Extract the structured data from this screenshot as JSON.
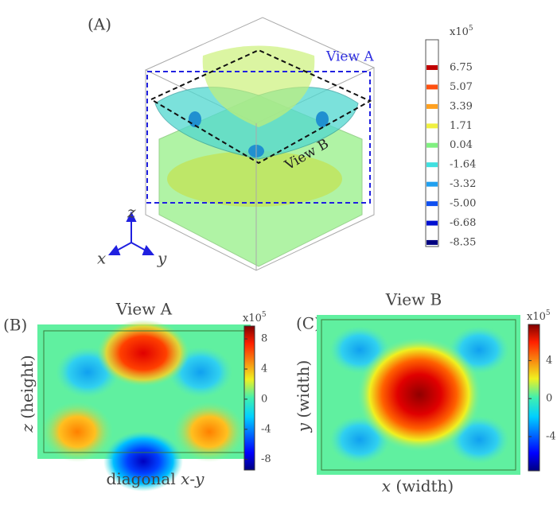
{
  "chart_data": [
    {
      "type": "isosurface",
      "panel_label": "(A)",
      "view_labels": [
        "View A",
        "View B"
      ],
      "axis_labels": {
        "x": "x",
        "y": "y",
        "z": "z"
      },
      "multiplier": {
        "base": "x10",
        "exponent": "5"
      },
      "clim": [
        -8.7,
        9.15
      ],
      "levels": [
        6.75,
        5.07,
        3.39,
        1.71,
        0.04,
        -1.64,
        -3.32,
        {
          "value": -5,
          "label": "-5.00"
        },
        -6.68,
        -8.35
      ],
      "level_colors": [
        "#c00000",
        "#ff5010",
        "#ffa020",
        "#f0f040",
        "#80f080",
        "#40e0e0",
        "#20a0f0",
        "#1050f0",
        "#0010d0",
        "#000080"
      ]
    },
    {
      "type": "heatmap",
      "panel_label": "(B)",
      "title": "View A",
      "xlabel": {
        "parts": [
          "diagonal ",
          "x",
          "-",
          "y"
        ]
      },
      "ylabel": {
        "var": "z",
        "text": " (height)"
      },
      "multiplier": {
        "base": "x10",
        "exponent": "5"
      },
      "clim": [
        -9.4,
        9.7
      ],
      "cticks": [
        8,
        4,
        0,
        -4,
        -8
      ]
    },
    {
      "type": "heatmap",
      "panel_label": "(C)",
      "title": "View B",
      "xlabel": {
        "var": "x",
        "text": " (width)"
      },
      "ylabel": {
        "var": "y",
        "text": " (width)"
      },
      "multiplier": {
        "base": "x10",
        "exponent": "5"
      },
      "clim": [
        -7.6,
        7.8
      ],
      "cticks": [
        4,
        0,
        -4
      ]
    }
  ]
}
